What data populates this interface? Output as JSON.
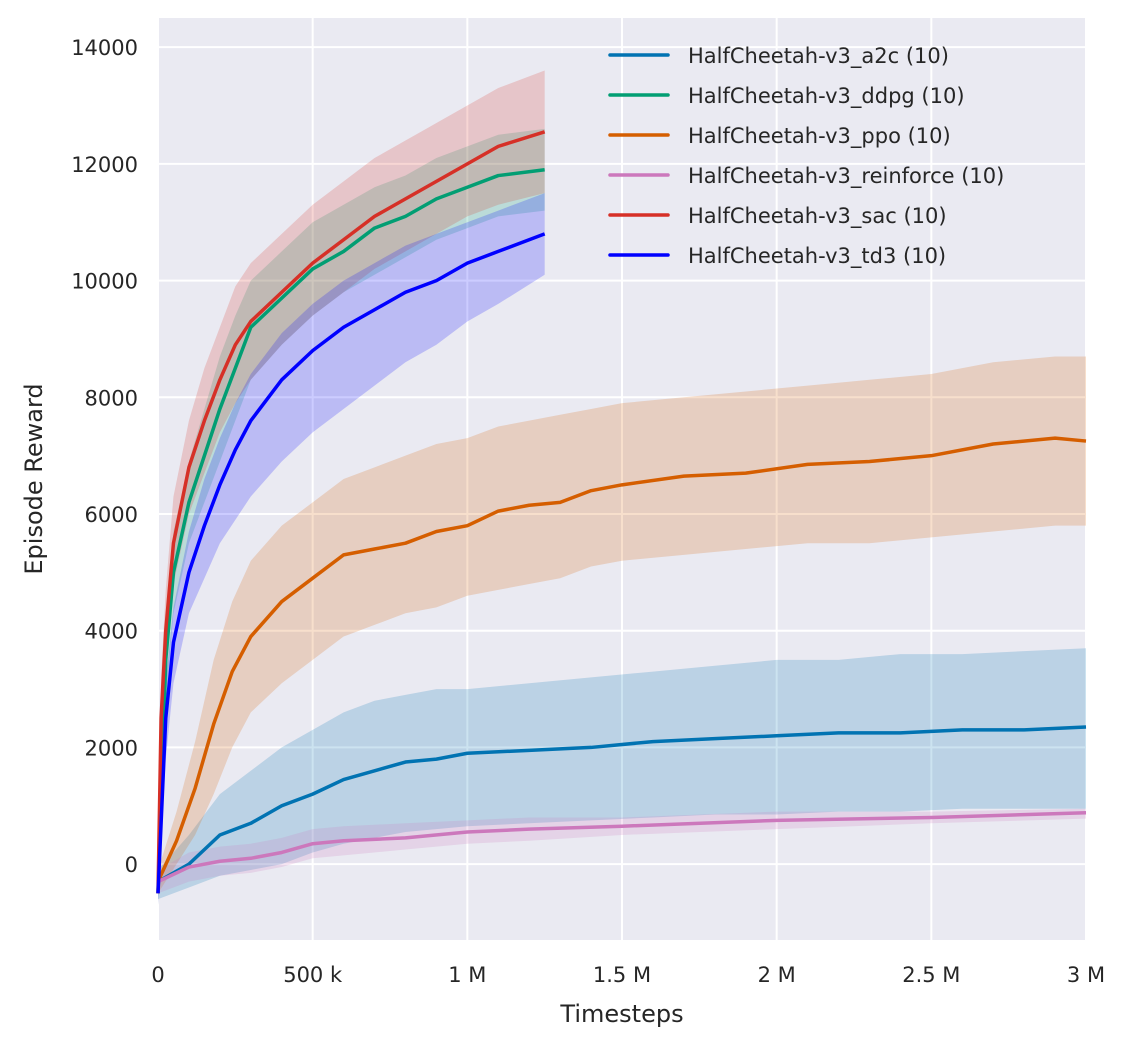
{
  "chart_data": {
    "type": "line",
    "title": "",
    "xlabel": "Timesteps",
    "ylabel": "Episode Reward",
    "xlim": [
      0,
      3000000
    ],
    "ylim": [
      -1300,
      14500
    ],
    "grid": true,
    "legend_position": "top-right",
    "x_ticks": [
      {
        "value": 0,
        "label": "0"
      },
      {
        "value": 500000,
        "label": "500 k"
      },
      {
        "value": 1000000,
        "label": "1 M"
      },
      {
        "value": 1500000,
        "label": "1.5 M"
      },
      {
        "value": 2000000,
        "label": "2 M"
      },
      {
        "value": 2500000,
        "label": "2.5 M"
      },
      {
        "value": 3000000,
        "label": "3 M"
      }
    ],
    "y_ticks": [
      {
        "value": 0,
        "label": "0"
      },
      {
        "value": 2000,
        "label": "2000"
      },
      {
        "value": 4000,
        "label": "4000"
      },
      {
        "value": 6000,
        "label": "6000"
      },
      {
        "value": 8000,
        "label": "8000"
      },
      {
        "value": 10000,
        "label": "10000"
      },
      {
        "value": 12000,
        "label": "12000"
      },
      {
        "value": 14000,
        "label": "14000"
      }
    ],
    "series": [
      {
        "name": "HalfCheetah-v3_a2c (10)",
        "color": "#0173b2",
        "x": [
          0,
          100000,
          200000,
          300000,
          400000,
          500000,
          600000,
          700000,
          800000,
          900000,
          1000000,
          1200000,
          1400000,
          1600000,
          1800000,
          2000000,
          2200000,
          2400000,
          2600000,
          2800000,
          3000000
        ],
        "y": [
          -300,
          0,
          500,
          700,
          1000,
          1200,
          1450,
          1600,
          1750,
          1800,
          1900,
          1950,
          2000,
          2100,
          2150,
          2200,
          2250,
          2250,
          2300,
          2300,
          2350
        ],
        "lower": [
          -600,
          -400,
          -200,
          -100,
          0,
          200,
          350,
          450,
          550,
          600,
          650,
          700,
          750,
          800,
          850,
          850,
          900,
          900,
          950,
          950,
          950
        ],
        "upper": [
          -100,
          500,
          1200,
          1600,
          2000,
          2300,
          2600,
          2800,
          2900,
          3000,
          3000,
          3100,
          3200,
          3300,
          3400,
          3500,
          3500,
          3600,
          3600,
          3650,
          3700
        ]
      },
      {
        "name": "HalfCheetah-v3_ddpg (10)",
        "color": "#029e73",
        "x": [
          0,
          25000,
          50000,
          100000,
          150000,
          200000,
          250000,
          300000,
          400000,
          500000,
          600000,
          700000,
          800000,
          900000,
          1000000,
          1100000,
          1250000
        ],
        "y": [
          -500,
          3500,
          5000,
          6200,
          7000,
          7800,
          8500,
          9200,
          9700,
          10200,
          10500,
          10900,
          11100,
          11400,
          11600,
          11800,
          11900
        ],
        "lower": [
          -700,
          2800,
          4300,
          5500,
          6200,
          6900,
          7600,
          8300,
          8900,
          9400,
          9800,
          10100,
          10400,
          10700,
          10900,
          11100,
          11200
        ],
        "upper": [
          -300,
          4200,
          5700,
          6900,
          7800,
          8700,
          9400,
          10000,
          10500,
          11000,
          11300,
          11600,
          11800,
          12100,
          12300,
          12500,
          12600
        ]
      },
      {
        "name": "HalfCheetah-v3_ppo (10)",
        "color": "#d55e00",
        "x": [
          0,
          60000,
          120000,
          180000,
          240000,
          300000,
          400000,
          500000,
          600000,
          700000,
          800000,
          900000,
          1000000,
          1100000,
          1200000,
          1300000,
          1400000,
          1500000,
          1700000,
          1900000,
          2100000,
          2300000,
          2500000,
          2700000,
          2900000,
          3000000
        ],
        "y": [
          -300,
          400,
          1300,
          2400,
          3300,
          3900,
          4500,
          4900,
          5300,
          5400,
          5500,
          5700,
          5800,
          6050,
          6150,
          6200,
          6400,
          6500,
          6650,
          6700,
          6850,
          6900,
          7000,
          7200,
          7300,
          7250
        ],
        "lower": [
          -500,
          0,
          500,
          1200,
          2000,
          2600,
          3100,
          3500,
          3900,
          4100,
          4300,
          4400,
          4600,
          4700,
          4800,
          4900,
          5100,
          5200,
          5300,
          5400,
          5500,
          5500,
          5600,
          5700,
          5800,
          5800
        ],
        "upper": [
          -100,
          900,
          2100,
          3500,
          4500,
          5200,
          5800,
          6200,
          6600,
          6800,
          7000,
          7200,
          7300,
          7500,
          7600,
          7700,
          7800,
          7900,
          8000,
          8100,
          8200,
          8300,
          8400,
          8600,
          8700,
          8700
        ]
      },
      {
        "name": "HalfCheetah-v3_reinforce (10)",
        "color": "#cc78bc",
        "x": [
          0,
          100000,
          200000,
          300000,
          400000,
          500000,
          600000,
          800000,
          1000000,
          1200000,
          1500000,
          2000000,
          2500000,
          3000000
        ],
        "y": [
          -300,
          -50,
          50,
          100,
          200,
          350,
          400,
          450,
          550,
          600,
          650,
          750,
          800,
          880
        ],
        "lower": [
          -500,
          -300,
          -200,
          -150,
          -50,
          100,
          150,
          250,
          350,
          400,
          500,
          600,
          700,
          780
        ],
        "upper": [
          -100,
          200,
          300,
          350,
          450,
          600,
          650,
          700,
          750,
          800,
          800,
          900,
          900,
          950
        ]
      },
      {
        "name": "HalfCheetah-v3_sac (10)",
        "color": "#d63027",
        "x": [
          0,
          10000,
          25000,
          50000,
          100000,
          150000,
          200000,
          250000,
          300000,
          400000,
          500000,
          600000,
          700000,
          800000,
          900000,
          1000000,
          1100000,
          1250000
        ],
        "y": [
          -500,
          2500,
          4000,
          5500,
          6800,
          7600,
          8300,
          8900,
          9300,
          9800,
          10300,
          10700,
          11100,
          11400,
          11700,
          12000,
          12300,
          12550
        ],
        "lower": [
          -700,
          1800,
          3300,
          4800,
          6000,
          6700,
          7400,
          7900,
          8300,
          8900,
          9400,
          9800,
          10200,
          10500,
          10800,
          11100,
          11300,
          11500
        ],
        "upper": [
          -300,
          3200,
          4700,
          6300,
          7600,
          8500,
          9200,
          9900,
          10300,
          10800,
          11300,
          11700,
          12100,
          12400,
          12700,
          13000,
          13300,
          13600
        ]
      },
      {
        "name": "HalfCheetah-v3_td3 (10)",
        "color": "#0000ff",
        "x": [
          0,
          25000,
          50000,
          100000,
          150000,
          200000,
          250000,
          300000,
          400000,
          500000,
          600000,
          700000,
          800000,
          900000,
          1000000,
          1100000,
          1250000
        ],
        "y": [
          -500,
          2500,
          3800,
          5000,
          5800,
          6500,
          7100,
          7600,
          8300,
          8800,
          9200,
          9500,
          9800,
          10000,
          10300,
          10500,
          10800
        ],
        "lower": [
          -700,
          1800,
          3100,
          4300,
          4900,
          5500,
          5900,
          6300,
          6900,
          7400,
          7800,
          8200,
          8600,
          8900,
          9300,
          9600,
          10100
        ],
        "upper": [
          -300,
          3100,
          4400,
          5700,
          6600,
          7300,
          7900,
          8400,
          9100,
          9600,
          10000,
          10300,
          10600,
          10800,
          11000,
          11200,
          11500
        ]
      }
    ]
  }
}
